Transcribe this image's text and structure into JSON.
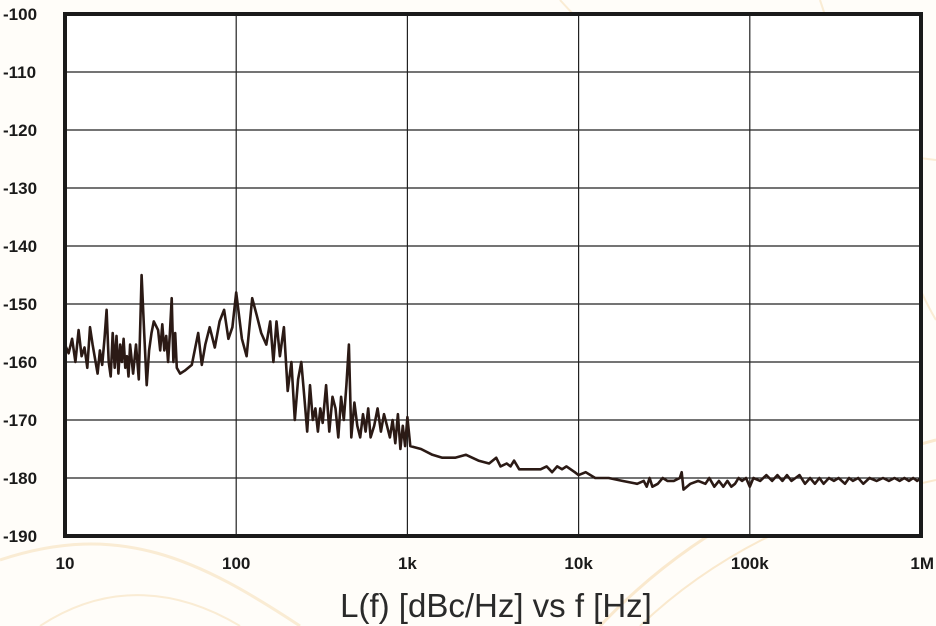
{
  "chart_data": {
    "type": "line",
    "title": "L(f) [dBc/Hz] vs f [Hz]",
    "xlabel": "",
    "ylabel": "",
    "x_scale": "log",
    "xlim": [
      10,
      1000000
    ],
    "ylim": [
      -190,
      -100
    ],
    "grid": true,
    "y_ticks": [
      "-100",
      "-110",
      "-120",
      "-130",
      "-140",
      "-150",
      "-160",
      "-170",
      "-180",
      "-190"
    ],
    "x_ticks": [
      {
        "value": 10,
        "label": "10"
      },
      {
        "value": 100,
        "label": "100"
      },
      {
        "value": 1000,
        "label": "1k"
      },
      {
        "value": 10000,
        "label": "10k"
      },
      {
        "value": 100000,
        "label": "100k"
      },
      {
        "value": 1000000,
        "label": "1M"
      }
    ],
    "colors": {
      "line": "#2b1a15",
      "frame": "#1a1a1a",
      "grid": "#222222",
      "background_accent": "#f3c98a"
    },
    "series": [
      {
        "values": [
          [
            10,
            -157
          ],
          [
            10.5,
            -158.5
          ],
          [
            11,
            -156
          ],
          [
            11.5,
            -160
          ],
          [
            12,
            -154.5
          ],
          [
            12.5,
            -159
          ],
          [
            13,
            -157.5
          ],
          [
            13.5,
            -161
          ],
          [
            14,
            -154
          ],
          [
            14.5,
            -157
          ],
          [
            15,
            -159.5
          ],
          [
            15.5,
            -162
          ],
          [
            16,
            -158
          ],
          [
            16.5,
            -160.5
          ],
          [
            17,
            -156
          ],
          [
            17.5,
            -151
          ],
          [
            18,
            -160
          ],
          [
            18.5,
            -162.5
          ],
          [
            19,
            -155
          ],
          [
            19.5,
            -161
          ],
          [
            20,
            -155.5
          ],
          [
            20.5,
            -162
          ],
          [
            21,
            -157
          ],
          [
            21.5,
            -160
          ],
          [
            22,
            -156
          ],
          [
            22.5,
            -161
          ],
          [
            23,
            -159
          ],
          [
            23.5,
            -162.5
          ],
          [
            24,
            -157
          ],
          [
            25,
            -162
          ],
          [
            26,
            -157
          ],
          [
            27,
            -163
          ],
          [
            28,
            -145
          ],
          [
            29,
            -155
          ],
          [
            30,
            -164
          ],
          [
            31,
            -158
          ],
          [
            32,
            -155
          ],
          [
            33,
            -153
          ],
          [
            35,
            -154.5
          ],
          [
            36,
            -158
          ],
          [
            37,
            -153.5
          ],
          [
            38,
            -158
          ],
          [
            39,
            -155.5
          ],
          [
            40,
            -160
          ],
          [
            41,
            -155
          ],
          [
            42,
            -149
          ],
          [
            43,
            -160
          ],
          [
            44,
            -155
          ],
          [
            45,
            -161
          ],
          [
            47,
            -162
          ],
          [
            50,
            -161.5
          ],
          [
            55,
            -160.5
          ],
          [
            60,
            -155
          ],
          [
            63,
            -160.5
          ],
          [
            66,
            -157
          ],
          [
            70,
            -154
          ],
          [
            75,
            -157.5
          ],
          [
            80,
            -153
          ],
          [
            85,
            -151
          ],
          [
            90,
            -156
          ],
          [
            95,
            -154
          ],
          [
            100,
            -148
          ],
          [
            108,
            -156
          ],
          [
            115,
            -159
          ],
          [
            124,
            -149
          ],
          [
            132,
            -152
          ],
          [
            140,
            -155
          ],
          [
            150,
            -157
          ],
          [
            158,
            -153
          ],
          [
            165,
            -160
          ],
          [
            172,
            -153
          ],
          [
            180,
            -159
          ],
          [
            190,
            -154
          ],
          [
            200,
            -165
          ],
          [
            210,
            -160
          ],
          [
            220,
            -170
          ],
          [
            230,
            -163
          ],
          [
            240,
            -160
          ],
          [
            250,
            -166
          ],
          [
            260,
            -172
          ],
          [
            270,
            -164
          ],
          [
            280,
            -170
          ],
          [
            290,
            -168
          ],
          [
            300,
            -172
          ],
          [
            310,
            -168
          ],
          [
            320,
            -170.5
          ],
          [
            335,
            -164
          ],
          [
            350,
            -172
          ],
          [
            365,
            -166
          ],
          [
            380,
            -168
          ],
          [
            395,
            -173
          ],
          [
            410,
            -166
          ],
          [
            425,
            -170
          ],
          [
            440,
            -164
          ],
          [
            455,
            -157
          ],
          [
            470,
            -173
          ],
          [
            490,
            -167
          ],
          [
            510,
            -171
          ],
          [
            530,
            -173
          ],
          [
            550,
            -169
          ],
          [
            570,
            -172
          ],
          [
            590,
            -168
          ],
          [
            610,
            -173
          ],
          [
            640,
            -171
          ],
          [
            670,
            -168
          ],
          [
            700,
            -172
          ],
          [
            730,
            -169
          ],
          [
            760,
            -171
          ],
          [
            790,
            -173
          ],
          [
            820,
            -170
          ],
          [
            850,
            -174
          ],
          [
            880,
            -169
          ],
          [
            910,
            -175
          ],
          [
            940,
            -171
          ],
          [
            970,
            -174.5
          ],
          [
            1000,
            -169.5
          ],
          [
            1040,
            -174.5
          ],
          [
            1200,
            -175
          ],
          [
            1400,
            -176
          ],
          [
            1600,
            -176.5
          ],
          [
            1900,
            -176.5
          ],
          [
            2200,
            -176
          ],
          [
            2600,
            -177
          ],
          [
            3000,
            -177.5
          ],
          [
            3300,
            -176.5
          ],
          [
            3500,
            -178
          ],
          [
            3800,
            -177.5
          ],
          [
            4000,
            -178
          ],
          [
            4200,
            -177
          ],
          [
            4500,
            -178.5
          ],
          [
            5000,
            -178.5
          ],
          [
            6000,
            -178.5
          ],
          [
            6500,
            -178
          ],
          [
            7000,
            -179
          ],
          [
            7500,
            -178
          ],
          [
            8000,
            -178.5
          ],
          [
            8500,
            -178
          ],
          [
            9500,
            -179
          ],
          [
            10000,
            -179.5
          ],
          [
            11000,
            -179
          ],
          [
            12500,
            -180
          ],
          [
            15000,
            -180
          ],
          [
            18000,
            -180.5
          ],
          [
            22000,
            -181
          ],
          [
            24000,
            -180.5
          ],
          [
            25000,
            -181.5
          ],
          [
            26000,
            -180
          ],
          [
            27000,
            -181.5
          ],
          [
            29000,
            -181
          ],
          [
            31000,
            -180
          ],
          [
            33000,
            -180.5
          ],
          [
            36000,
            -180.5
          ],
          [
            39000,
            -180
          ],
          [
            40000,
            -179
          ],
          [
            41000,
            -182
          ],
          [
            45000,
            -181
          ],
          [
            50000,
            -180.5
          ],
          [
            55000,
            -181
          ],
          [
            58000,
            -180
          ],
          [
            62000,
            -181.5
          ],
          [
            66000,
            -180.5
          ],
          [
            70000,
            -181.5
          ],
          [
            74000,
            -180.5
          ],
          [
            78000,
            -181.5
          ],
          [
            82000,
            -181
          ],
          [
            86000,
            -180
          ],
          [
            90000,
            -180.5
          ],
          [
            95000,
            -180
          ],
          [
            100000,
            -181.5
          ],
          [
            105000,
            -180
          ],
          [
            115000,
            -180.5
          ],
          [
            125000,
            -179.5
          ],
          [
            135000,
            -180.5
          ],
          [
            145000,
            -179.5
          ],
          [
            155000,
            -180.5
          ],
          [
            165000,
            -179.5
          ],
          [
            175000,
            -180.5
          ],
          [
            185000,
            -180
          ],
          [
            195000,
            -179.5
          ],
          [
            210000,
            -181
          ],
          [
            225000,
            -180
          ],
          [
            240000,
            -181
          ],
          [
            255000,
            -180
          ],
          [
            270000,
            -181
          ],
          [
            290000,
            -180
          ],
          [
            310000,
            -180.5
          ],
          [
            330000,
            -180
          ],
          [
            360000,
            -181
          ],
          [
            380000,
            -180
          ],
          [
            400000,
            -180.5
          ],
          [
            430000,
            -180
          ],
          [
            460000,
            -181
          ],
          [
            500000,
            -180
          ],
          [
            550000,
            -180.5
          ],
          [
            600000,
            -180
          ],
          [
            650000,
            -180.5
          ],
          [
            700000,
            -180
          ],
          [
            750000,
            -180.5
          ],
          [
            800000,
            -180
          ],
          [
            850000,
            -180.5
          ],
          [
            900000,
            -180
          ],
          [
            950000,
            -180.5
          ],
          [
            1000000,
            -180
          ]
        ]
      }
    ]
  }
}
